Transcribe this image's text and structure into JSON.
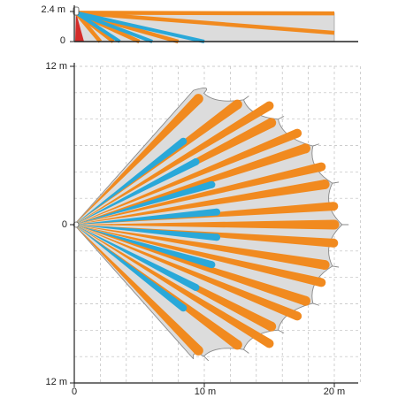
{
  "colors": {
    "long_range_zone": "#f18a1f",
    "short_range_zone": "#29a8d9",
    "coverage_fill": "#dcdcdc",
    "coverage_stroke": "#8a8a8a",
    "creep_zone": "#d42c2a",
    "grid": "#bdbdbd",
    "axis": "#222222"
  },
  "side_view": {
    "y_labels": {
      "top": "2.4 m",
      "bottom": "0"
    },
    "x_range_m": [
      0,
      20.5
    ],
    "y_range_m": [
      0,
      2.4
    ],
    "long_beams": [
      {
        "x_end_m": 20,
        "y_end_m": 2.25
      },
      {
        "x_end_m": 20,
        "y_end_m": 0.7
      },
      {
        "x_end_m": 8,
        "y_end_m": 0
      },
      {
        "x_end_m": 5,
        "y_end_m": 0
      },
      {
        "x_end_m": 3,
        "y_end_m": 0
      },
      {
        "x_end_m": 2,
        "y_end_m": 0
      }
    ],
    "short_beams": [
      {
        "x_end_m": 10,
        "y_end_m": 0
      },
      {
        "x_end_m": 6,
        "y_end_m": 0
      },
      {
        "x_end_m": 3.5,
        "y_end_m": 0
      }
    ]
  },
  "top_view": {
    "y_labels": {
      "top": "12 m",
      "middle": "0",
      "bottom": "12 m"
    },
    "x_labels": {
      "origin": "0",
      "mid": "10 m",
      "far": "20 m"
    },
    "x_range_m": [
      0,
      22
    ],
    "y_range_m": [
      -12,
      12
    ],
    "long_zones": [
      {
        "angle_deg": 45,
        "length_m": 13.5
      },
      {
        "angle_deg": 36,
        "length_m": 15.5
      },
      {
        "angle_deg": 27,
        "length_m": 17
      },
      {
        "angle_deg": 18,
        "length_m": 18.7
      },
      {
        "angle_deg": 9,
        "length_m": 19.5
      },
      {
        "angle_deg": 0,
        "length_m": 20
      },
      {
        "angle_deg": -9,
        "length_m": 19.5
      },
      {
        "angle_deg": -18,
        "length_m": 18.7
      },
      {
        "angle_deg": -27,
        "length_m": 17
      },
      {
        "angle_deg": -36,
        "length_m": 15.5
      },
      {
        "angle_deg": -45,
        "length_m": 13.5
      }
    ],
    "short_zones": [
      {
        "angle_deg": 37,
        "length_m": 10.5
      },
      {
        "angle_deg": 27,
        "length_m": 10.5
      },
      {
        "angle_deg": 16,
        "length_m": 11
      },
      {
        "angle_deg": 5,
        "length_m": 11
      },
      {
        "angle_deg": -5,
        "length_m": 11
      },
      {
        "angle_deg": -16,
        "length_m": 11
      },
      {
        "angle_deg": -27,
        "length_m": 10.5
      },
      {
        "angle_deg": -37,
        "length_m": 10.5
      }
    ],
    "middle_zones": [
      {
        "angle_deg": 31,
        "length_m": 17.5
      },
      {
        "angle_deg": 22,
        "length_m": 18.5
      },
      {
        "angle_deg": 13,
        "length_m": 19.5
      },
      {
        "angle_deg": 4,
        "length_m": 20
      },
      {
        "angle_deg": -4,
        "length_m": 20
      },
      {
        "angle_deg": -13,
        "length_m": 19.5
      },
      {
        "angle_deg": -22,
        "length_m": 18.5
      },
      {
        "angle_deg": -31,
        "length_m": 17.5
      }
    ]
  }
}
